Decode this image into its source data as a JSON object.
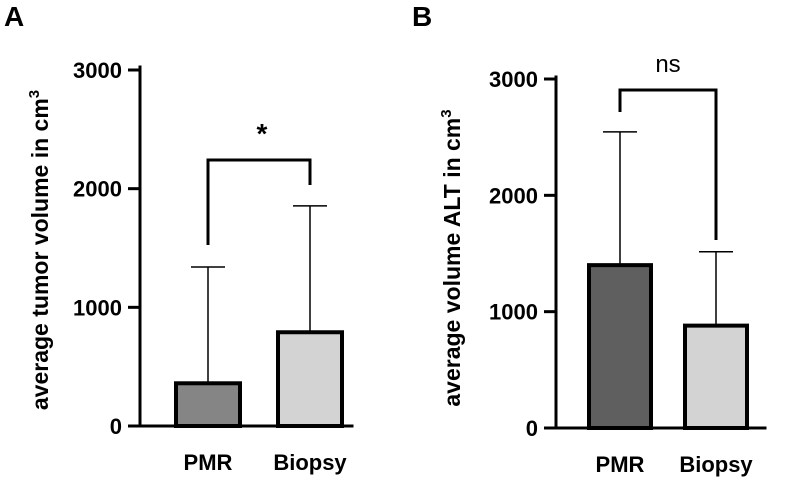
{
  "chart_data": [
    {
      "panel": "A",
      "type": "bar",
      "ylabel": "average tumor volume in cm",
      "ylabel_superscript": "3",
      "categories": [
        "PMR",
        "Biopsy"
      ],
      "values": [
        360,
        790
      ],
      "error_upper": [
        1340,
        1855
      ],
      "ylim": [
        0,
        3000
      ],
      "yticks": [
        0,
        1000,
        2000,
        3000
      ],
      "ytick_labels": [
        "0",
        "1000",
        "2000",
        "3000"
      ],
      "bar_colors": [
        "#858585",
        "#d3d3d3"
      ],
      "significance": {
        "label": "*",
        "between": [
          "PMR",
          "Biopsy"
        ]
      }
    },
    {
      "panel": "B",
      "type": "bar",
      "ylabel": "average volume ALT in cm",
      "ylabel_superscript": "3",
      "categories": [
        "PMR",
        "Biopsy"
      ],
      "values": [
        1400,
        880
      ],
      "error_upper": [
        2545,
        1515
      ],
      "ylim": [
        0,
        3000
      ],
      "yticks": [
        0,
        1000,
        2000,
        3000
      ],
      "ytick_labels": [
        "0",
        "1000",
        "2000",
        "3000"
      ],
      "bar_colors": [
        "#5f5f5f",
        "#d3d3d3"
      ],
      "significance": {
        "label": "ns",
        "between": [
          "PMR",
          "Biopsy"
        ]
      }
    }
  ]
}
